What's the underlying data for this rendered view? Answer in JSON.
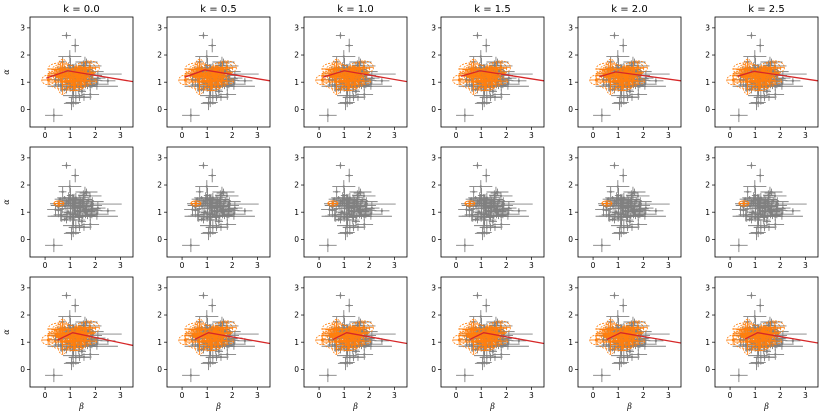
{
  "chart_data": {
    "type": "scatter",
    "layout": "3x6 grid of panels",
    "column_titles": [
      "k = 0.0",
      "k = 0.5",
      "k = 1.0",
      "k = 1.5",
      "k = 2.0",
      "k = 2.5"
    ],
    "xlabel": "β",
    "ylabel": "α",
    "xlim": [
      -0.6,
      3.5
    ],
    "ylim": [
      -0.65,
      3.4
    ],
    "xticks": [
      0,
      1,
      2,
      3
    ],
    "yticks": [
      0,
      1,
      2,
      3
    ],
    "colors": {
      "data": "#808080",
      "highlight": "#ff7f0e",
      "fit": "#d62728",
      "axes": "#000000"
    },
    "series_description": {
      "gray": "all measurements (β, α) with horizontal/vertical error bars",
      "orange": "selected subset, error ellipses",
      "red": "fitted trend line (rows 1 and 3)"
    },
    "outliers": [
      {
        "x": 0.85,
        "y": 2.72,
        "xerr": 0.18,
        "yerr": 0.12
      },
      {
        "x": 0.35,
        "y": -0.22,
        "xerr": 0.35,
        "yerr": 0.25
      },
      {
        "x": 1.9,
        "y": 1.3,
        "xerr": 1.15,
        "yerr": 0.15
      },
      {
        "x": 1.5,
        "y": 0.85,
        "xerr": 1.4,
        "yerr": 0.1
      },
      {
        "x": 1.8,
        "y": 0.55,
        "xerr": 0.35,
        "yerr": 0.2
      },
      {
        "x": 1.05,
        "y": 0.22,
        "xerr": 0.3,
        "yerr": 0.25
      },
      {
        "x": 2.5,
        "y": 1.05,
        "xerr": 0.3,
        "yerr": 0.1
      },
      {
        "x": 1.2,
        "y": 2.35,
        "xerr": 0.15,
        "yerr": 0.25
      },
      {
        "x": 0.7,
        "y": 1.75,
        "xerr": 0.15,
        "yerr": 0.2
      }
    ],
    "rows": [
      {
        "row": 1,
        "fit_lines": [
          {
            "x": [
              0.05,
              0.9,
              3.5
            ],
            "y": [
              1.15,
              1.42,
              1.02
            ]
          },
          {
            "x": [
              0.1,
              0.9,
              3.5
            ],
            "y": [
              1.18,
              1.45,
              1.05
            ]
          },
          {
            "x": [
              0.15,
              1.0,
              3.5
            ],
            "y": [
              1.18,
              1.42,
              1.02
            ]
          },
          {
            "x": [
              0.2,
              0.95,
              3.5
            ],
            "y": [
              1.22,
              1.42,
              1.05
            ]
          },
          {
            "x": [
              0.25,
              0.9,
              3.5
            ],
            "y": [
              1.2,
              1.38,
              1.05
            ]
          },
          {
            "x": [
              0.3,
              0.95,
              3.5
            ],
            "y": [
              1.22,
              1.4,
              1.05
            ]
          }
        ],
        "orange": "many"
      },
      {
        "row": 2,
        "fit_lines": [],
        "orange": "single",
        "single_point": {
          "x": 0.55,
          "y": 1.32,
          "xerr": 0.2,
          "yerr": 0.1
        }
      },
      {
        "row": 3,
        "fit_lines": [
          {
            "x": [
              0.5,
              1.1,
              3.5
            ],
            "y": [
              1.08,
              1.35,
              0.88
            ]
          },
          {
            "x": [
              0.5,
              1.05,
              3.5
            ],
            "y": [
              1.1,
              1.35,
              0.95
            ]
          },
          {
            "x": [
              0.55,
              1.1,
              3.5
            ],
            "y": [
              1.1,
              1.35,
              0.95
            ]
          },
          {
            "x": [
              0.55,
              1.1,
              3.5
            ],
            "y": [
              1.1,
              1.35,
              0.95
            ]
          },
          {
            "x": [
              0.55,
              1.1,
              3.5
            ],
            "y": [
              1.1,
              1.35,
              0.97
            ]
          },
          {
            "x": [
              0.6,
              1.1,
              3.5
            ],
            "y": [
              1.12,
              1.35,
              0.97
            ]
          }
        ],
        "orange": "many"
      }
    ]
  }
}
